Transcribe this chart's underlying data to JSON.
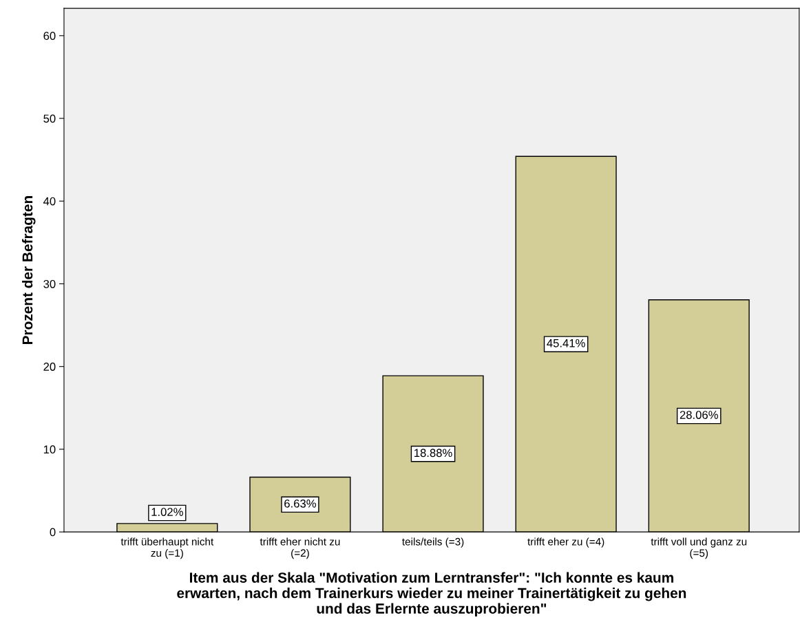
{
  "chart_data": {
    "type": "bar",
    "categories": [
      "trifft überhaupt nicht\nzu (=1)",
      "trifft eher nicht zu\n(=2)",
      "teils/teils (=3)",
      "trifft eher zu (=4)",
      "trifft voll und ganz zu\n(=5)"
    ],
    "values": [
      1.02,
      6.63,
      18.88,
      45.41,
      28.06
    ],
    "value_labels": [
      "1.02%",
      "6.63%",
      "18.88%",
      "45.41%",
      "28.06%"
    ],
    "color": "#d3ce97",
    "xlabel": "Item aus der Skala \"Motivation zum Lerntransfer\": \"Ich konnte es kaum\nerwarten, nach dem Trainerkurs wieder zu meiner Trainertätigkeit zu gehen\nund das Erlernte auszuprobieren\"",
    "ylabel": "Prozent der Befragten",
    "ylim": [
      0,
      63.3
    ],
    "yticks": [
      0,
      10,
      20,
      30,
      40,
      50,
      60
    ],
    "grid": false,
    "legend": false
  }
}
